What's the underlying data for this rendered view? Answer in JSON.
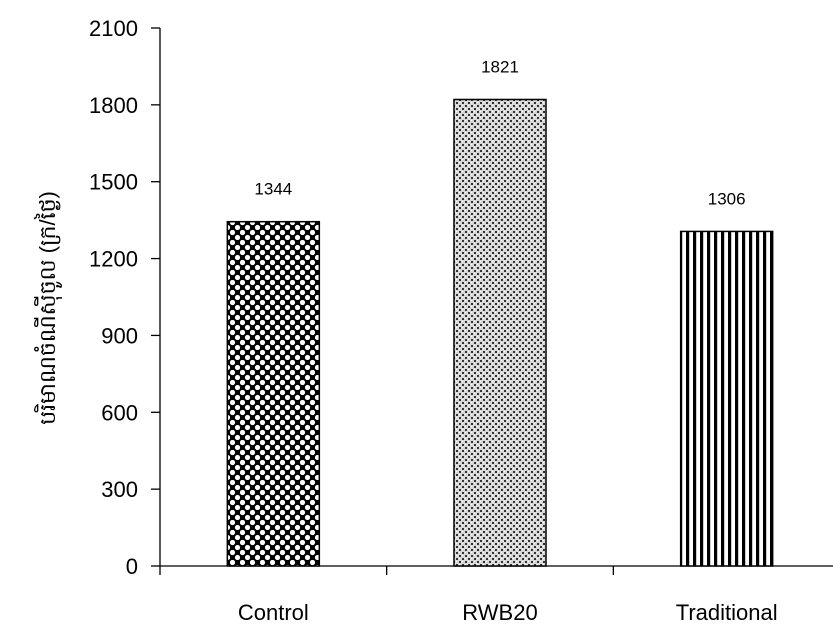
{
  "chart_data": {
    "type": "bar",
    "title": "",
    "xlabel": "",
    "ylabel": "បរិមាណចំណីស៊ីចូល (ក្រ/ថ្ងៃ)",
    "categories": [
      "Control",
      "RWB20",
      "Traditional"
    ],
    "values": [
      1344,
      1821,
      1306
    ],
    "data_labels": [
      "1344",
      "1821",
      "1306"
    ],
    "ylim": [
      0,
      2100
    ],
    "yticks": [
      0,
      300,
      600,
      900,
      1200,
      1500,
      1800,
      2100
    ],
    "ytick_labels": [
      "0",
      "300",
      "600",
      "900",
      "1200",
      "1500",
      "1800",
      "2100"
    ],
    "bar_patterns": [
      "checker-dots",
      "fine-dots",
      "vertical-stripes"
    ],
    "grid": false,
    "legend": "none"
  }
}
